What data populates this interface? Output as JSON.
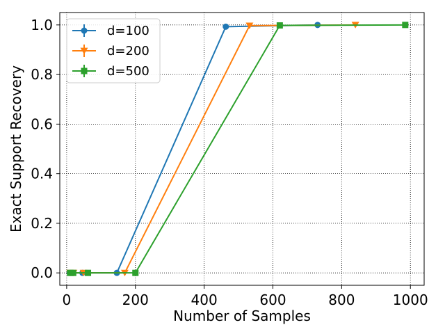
{
  "chart_data": {
    "type": "line",
    "xlabel": "Number of Samples",
    "ylabel": "Exact Support Recovery",
    "xlim": [
      -20,
      1040
    ],
    "ylim": [
      -0.05,
      1.05
    ],
    "xticks": [
      0,
      200,
      400,
      600,
      800,
      1000
    ],
    "yticks": [
      0.0,
      0.2,
      0.4,
      0.6,
      0.8,
      1.0
    ],
    "xtick_labels": [
      "0",
      "200",
      "400",
      "600",
      "800",
      "1000"
    ],
    "ytick_labels": [
      "0.0",
      "0.2",
      "0.4",
      "0.6",
      "0.8",
      "1.0"
    ],
    "grid": true,
    "legend_position": "top-left",
    "series": [
      {
        "name": "d=100",
        "color": "#1f77b4",
        "marker": "circle",
        "x": [
          9,
          18,
          46,
          146,
          463,
          730
        ],
        "y": [
          0.0,
          0.0,
          0.0,
          0.0,
          0.993,
          1.0
        ]
      },
      {
        "name": "d=200",
        "color": "#ff7f0e",
        "marker": "triangle-down",
        "x": [
          10,
          20,
          49,
          169,
          532,
          840
        ],
        "y": [
          0.0,
          0.0,
          0.0,
          0.0,
          0.997,
          1.0
        ]
      },
      {
        "name": "d=500",
        "color": "#2ca02c",
        "marker": "square",
        "x": [
          10,
          19,
          62,
          200,
          620,
          985
        ],
        "y": [
          0.0,
          0.0,
          0.0,
          0.0,
          0.998,
          1.0
        ]
      }
    ]
  }
}
